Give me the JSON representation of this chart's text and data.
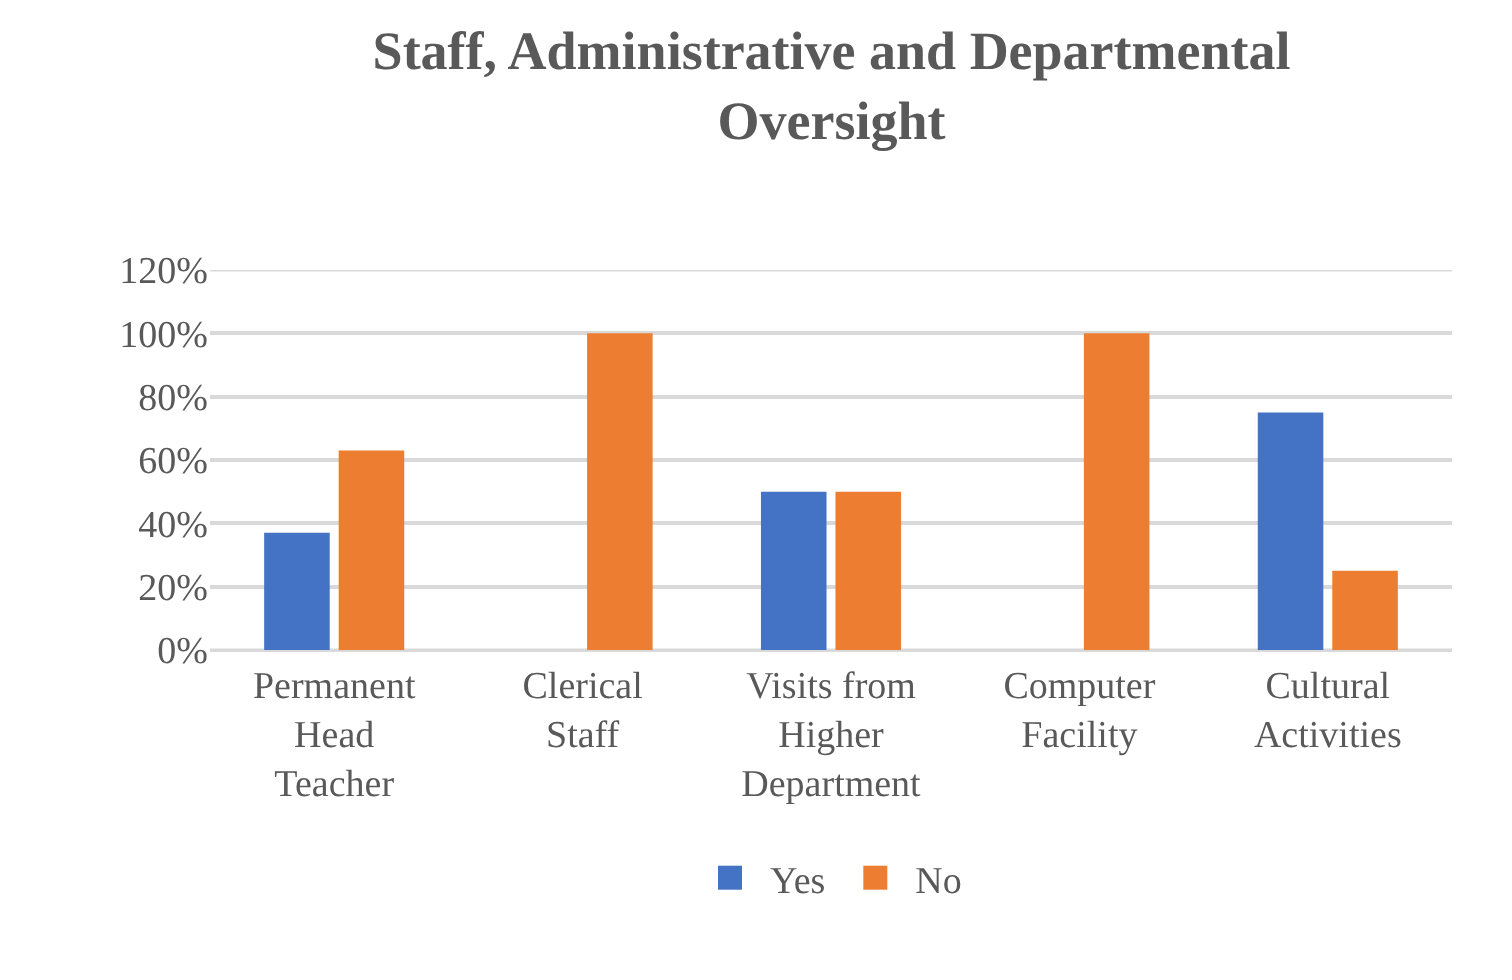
{
  "chart_data": {
    "type": "bar",
    "title": "Staff, Administrative and Departmental Oversight",
    "categories": [
      "Permanent Head Teacher",
      "Clerical Staff",
      "Visits from Higher Department",
      "Computer Facility",
      "Cultural Activities"
    ],
    "series": [
      {
        "name": "Yes",
        "color": "#4472c4",
        "values": [
          37,
          0,
          50,
          0,
          75
        ]
      },
      {
        "name": "No",
        "color": "#ed7d31",
        "values": [
          63,
          100,
          50,
          100,
          25
        ]
      }
    ],
    "ylim": [
      0,
      120
    ],
    "yticks": [
      {
        "value": 0,
        "label": "0%"
      },
      {
        "value": 20,
        "label": "20%"
      },
      {
        "value": 40,
        "label": "40%"
      },
      {
        "value": 60,
        "label": "60%"
      },
      {
        "value": 80,
        "label": "80%"
      },
      {
        "value": 100,
        "label": "100%"
      },
      {
        "value": 120,
        "label": "120%"
      }
    ],
    "grid": "y",
    "legend": "bottom"
  }
}
